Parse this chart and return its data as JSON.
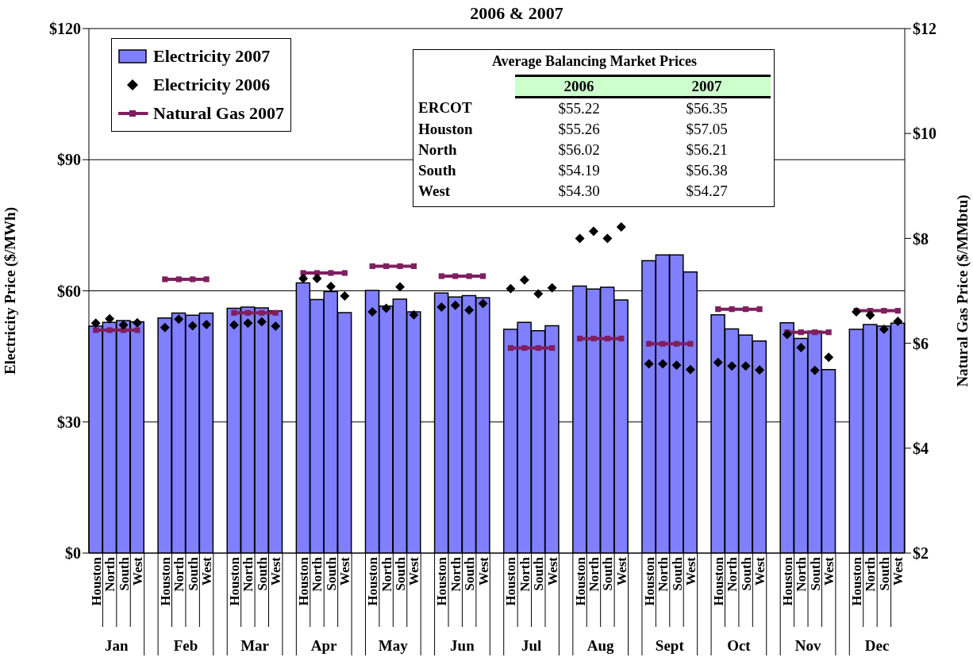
{
  "chart_data": [
    {
      "type": "bar",
      "title": "2006 & 2007",
      "categories": [
        "Houston",
        "North",
        "South",
        "West",
        null,
        "Houston",
        "North",
        "South",
        "West",
        null,
        "Houston",
        "North",
        "South",
        "West",
        null,
        "Houston",
        "North",
        "South",
        "West",
        null,
        "Houston",
        "North",
        "South",
        "West",
        null,
        "Houston",
        "North",
        "South",
        "West",
        null,
        "Houston",
        "North",
        "South",
        "West",
        null,
        "Houston",
        "North",
        "South",
        "West",
        null,
        "Houston",
        "North",
        "South",
        "West",
        null,
        "Houston",
        "North",
        "South",
        "West",
        null,
        "Houston",
        "North",
        "South",
        "West",
        null,
        "Houston",
        "North",
        "South",
        "West"
      ],
      "annotations": [
        "Jan",
        "Feb",
        "Mar",
        "Apr",
        "May",
        "Jun",
        "Jul",
        "Aug",
        "Sept",
        "Oct",
        "Nov",
        "Dec"
      ],
      "ylabel": "Electricity Price ($/MWh)",
      "y2label": "Natural Gas Price ($/MMbtu)",
      "ylim": [
        0,
        120
      ],
      "yticks": [
        {
          "value": 0,
          "label": "$0"
        },
        {
          "value": 30,
          "label": "$30"
        },
        {
          "value": 60,
          "label": "$60"
        },
        {
          "value": 90,
          "label": "$90"
        },
        {
          "value": 120,
          "label": "$120"
        }
      ],
      "y2lim": [
        2,
        12
      ],
      "y2ticks": [
        {
          "value": 2,
          "label": "$2"
        },
        {
          "value": 4,
          "label": "$4"
        },
        {
          "value": 6,
          "label": "$6"
        },
        {
          "value": 8,
          "label": "$8"
        },
        {
          "value": 10,
          "label": "$10"
        },
        {
          "value": 12,
          "label": "$12"
        }
      ],
      "grid": "y",
      "legend": "top left",
      "series": [
        {
          "name": "Electricity 2007",
          "type": "bar",
          "color": "#8080ff",
          "values": [
            51.9,
            52.8,
            53.2,
            52.9,
            null,
            53.8,
            54.9,
            54.4,
            54.9,
            null,
            56.0,
            56.3,
            56.1,
            55.4,
            null,
            61.8,
            58.0,
            59.8,
            55.0,
            null,
            60.1,
            56.5,
            58.1,
            55.2,
            null,
            59.5,
            58.6,
            58.9,
            58.4,
            null,
            51.2,
            52.8,
            50.9,
            52.0,
            null,
            61.1,
            60.4,
            60.8,
            57.9,
            null,
            66.9,
            68.2,
            68.2,
            64.3,
            null,
            54.5,
            51.3,
            49.9,
            48.5,
            null,
            52.7,
            49.1,
            50.8,
            42.0,
            null,
            51.2,
            52.3,
            51.9,
            52.6
          ]
        },
        {
          "name": "Electricity 2006",
          "type": "scatter",
          "color": "#000000",
          "marker": "diamond",
          "values": [
            52.6,
            53.6,
            52.2,
            52.7,
            null,
            51.6,
            53.5,
            52.0,
            52.3,
            null,
            52.2,
            52.6,
            52.9,
            51.9,
            null,
            62.8,
            62.8,
            61.0,
            58.8,
            null,
            55.2,
            56.0,
            60.9,
            54.5,
            null,
            56.3,
            56.7,
            55.6,
            57.1,
            null,
            60.5,
            62.5,
            59.3,
            60.7,
            null,
            72.0,
            73.6,
            72.0,
            74.6,
            null,
            43.3,
            43.3,
            43.0,
            42.0,
            null,
            43.6,
            42.8,
            42.8,
            41.9,
            null,
            50.0,
            47.0,
            41.8,
            44.8,
            null,
            55.2,
            54.4,
            51.2,
            53.0
          ]
        },
        {
          "name": "Natural Gas 2007",
          "type": "line",
          "axis": "y2",
          "color": "#7f1f5f",
          "marker": "square",
          "values": [
            6.25,
            6.25,
            6.25,
            6.25,
            null,
            7.22,
            7.22,
            7.22,
            7.22,
            null,
            6.58,
            6.58,
            6.58,
            6.58,
            null,
            7.34,
            7.34,
            7.34,
            7.34,
            null,
            7.47,
            7.47,
            7.47,
            7.47,
            null,
            7.28,
            7.28,
            7.28,
            7.28,
            null,
            5.91,
            5.91,
            5.91,
            5.91,
            null,
            6.09,
            6.09,
            6.09,
            6.09,
            null,
            5.99,
            5.99,
            5.99,
            5.99,
            null,
            6.65,
            6.65,
            6.65,
            6.65,
            null,
            6.21,
            6.21,
            6.21,
            6.21,
            null,
            6.62,
            6.62,
            6.62,
            6.62
          ]
        }
      ]
    },
    {
      "type": "other",
      "title": "Average Balancing Market Prices",
      "categories": [
        "2006",
        "2007"
      ],
      "y_categories": [
        "ERCOT",
        "Houston",
        "North",
        "South",
        "West"
      ],
      "annotations": [
        "$55.22",
        "$56.35",
        "$55.26",
        "$57.05",
        "$56.02",
        "$56.21",
        "$54.19",
        "$56.38",
        "$54.30",
        "$54.27"
      ]
    }
  ]
}
